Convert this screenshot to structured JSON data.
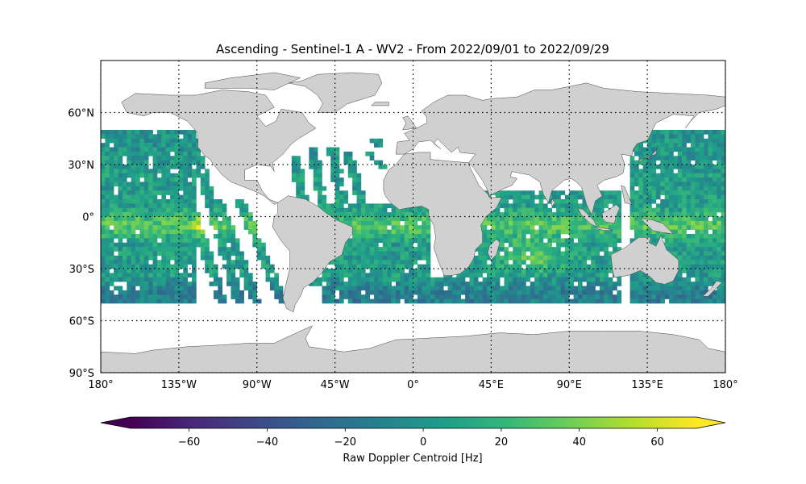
{
  "chart_data": {
    "type": "heatmap",
    "title": "Ascending - Sentinel-1 A - WV2 - From 2022/09/01 to 2022/09/29",
    "projection": "PlateCarree",
    "xlim": [
      -180,
      180
    ],
    "ylim": [
      -90,
      90
    ],
    "grid": true,
    "x_ticks": [
      {
        "value": -180,
        "label": "180°"
      },
      {
        "value": -135,
        "label": "135°W"
      },
      {
        "value": -90,
        "label": "90°W"
      },
      {
        "value": -45,
        "label": "45°W"
      },
      {
        "value": 0,
        "label": "0°"
      },
      {
        "value": 45,
        "label": "45°E"
      },
      {
        "value": 90,
        "label": "90°E"
      },
      {
        "value": 135,
        "label": "135°E"
      },
      {
        "value": 180,
        "label": "180°"
      }
    ],
    "y_ticks": [
      {
        "value": 60,
        "label": "60°N"
      },
      {
        "value": 30,
        "label": "30°N"
      },
      {
        "value": 0,
        "label": "0°"
      },
      {
        "value": -30,
        "label": "30°S"
      },
      {
        "value": -60,
        "label": "60°S"
      },
      {
        "value": -90,
        "label": "90°S"
      }
    ],
    "colorbar": {
      "label": "Raw Doppler Centroid [Hz]",
      "colormap": "viridis",
      "range": [
        -75,
        70
      ],
      "extend": "both",
      "ticks": [
        {
          "value": -60,
          "label": "−60"
        },
        {
          "value": -40,
          "label": "−40"
        },
        {
          "value": -20,
          "label": "−20"
        },
        {
          "value": 0,
          "label": "0"
        },
        {
          "value": 20,
          "label": "20"
        },
        {
          "value": 40,
          "label": "40"
        },
        {
          "value": 60,
          "label": "60"
        }
      ]
    },
    "cell_size_deg": 2.5,
    "data_lat_range": [
      -50,
      50
    ],
    "coverage": {
      "pacific_east_block": [
        [
          -180,
          -126
        ],
        [
          -50,
          50
        ]
      ],
      "pacific_tracks": [
        [
          [
            -142,
            50
          ],
          [
            -110,
            -50
          ]
        ],
        [
          [
            -127,
            45
          ],
          [
            -100,
            -50
          ]
        ],
        [
          [
            -113,
            10
          ],
          [
            -90,
            -50
          ]
        ],
        [
          [
            -100,
            10
          ],
          [
            -75,
            -50
          ]
        ]
      ],
      "atlantic_tracks": [
        [
          [
            -68,
            35
          ],
          [
            -56,
            -40
          ]
        ],
        [
          [
            -58,
            40
          ],
          [
            -48,
            -15
          ]
        ],
        [
          [
            -47,
            40
          ],
          [
            -35,
            -20
          ]
        ],
        [
          [
            -38,
            37
          ],
          [
            -26,
            -5
          ]
        ],
        [
          [
            -25,
            37
          ],
          [
            -18,
            28
          ]
        ],
        [
          [
            -22,
            45
          ],
          [
            -17,
            40
          ]
        ]
      ],
      "south_atlantic_block": [
        [
          -53,
          10
        ],
        [
          -50,
          8
        ]
      ],
      "indian_ocean_block": [
        [
          18,
          120
        ],
        [
          -50,
          15
        ]
      ],
      "west_pacific_block": [
        [
          125,
          180
        ],
        [
          -50,
          50
        ]
      ]
    },
    "field_features": {
      "equatorial_positive_band": {
        "lat": [
          -12,
          2
        ],
        "mean": 25
      },
      "south_indian_positive": {
        "center": [
          70,
          -22
        ],
        "mean": 28
      },
      "southern_negative": {
        "lat": [
          -50,
          -35
        ],
        "mean": -18
      },
      "pacific_maximum": {
        "center": [
          -122,
          -5
        ],
        "value": 65
      }
    },
    "colors": {
      "land": "#d0d0d0",
      "coastline": "#444444",
      "gridline": "#000000",
      "viridis": [
        "#440154",
        "#482878",
        "#3e4989",
        "#31688e",
        "#26828e",
        "#1f9e89",
        "#35b779",
        "#6ece58",
        "#b5de2b",
        "#fde725"
      ]
    }
  }
}
